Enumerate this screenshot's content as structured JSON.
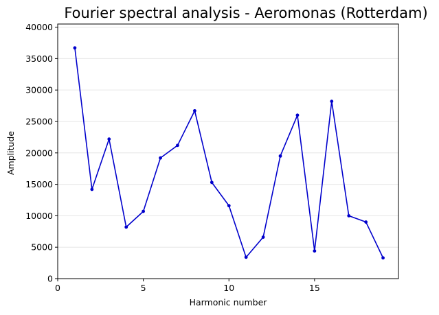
{
  "chart_data": {
    "type": "line",
    "title": "Fourier spectral analysis - Aeromonas (Rotterdam)",
    "xlabel": "Harmonic number",
    "ylabel": "Amplitude",
    "x": [
      1,
      2,
      3,
      4,
      5,
      6,
      7,
      8,
      9,
      10,
      11,
      12,
      13,
      14,
      15,
      16,
      17,
      18,
      19
    ],
    "series": [
      {
        "values": [
          36700,
          14200,
          22200,
          8200,
          10700,
          19200,
          21200,
          26700,
          15300,
          11600,
          3400,
          6600,
          19500,
          26000,
          4400,
          28200,
          10000,
          9000,
          3300
        ],
        "color": "#0000cc",
        "marker": "circle"
      }
    ],
    "xlim": [
      0,
      19.9
    ],
    "ylim": [
      0,
      40500
    ],
    "xticks": [
      0,
      5,
      10,
      15
    ],
    "xtick_labels": [
      "0",
      "5",
      "10",
      "15"
    ],
    "yticks": [
      0,
      5000,
      10000,
      15000,
      20000,
      25000,
      30000,
      35000,
      40000
    ],
    "ytick_labels": [
      "0",
      "5000",
      "10000",
      "15000",
      "20000",
      "25000",
      "30000",
      "35000",
      "40000"
    ],
    "grid": "horizontal",
    "grid_color": "#e6e6e6",
    "legend": false
  }
}
